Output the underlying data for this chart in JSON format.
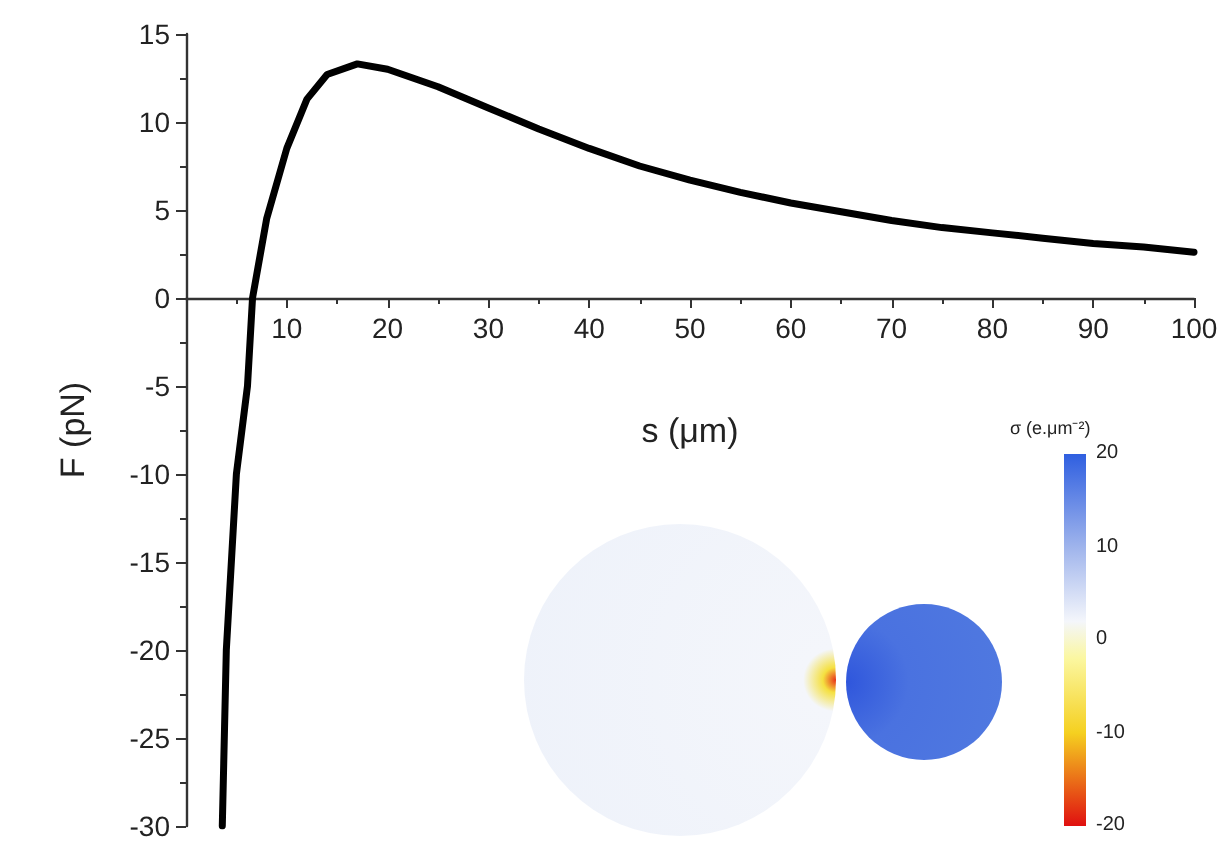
{
  "chart_data": {
    "type": "line",
    "xlabel": "s (μm)",
    "ylabel": "F (pN)",
    "annotations": [
      "σ (e.μm⁻²)",
      "20",
      "10",
      "0",
      "-10",
      "-20"
    ],
    "xlim": [
      0,
      100
    ],
    "xticks": [
      {
        "value": 0,
        "label": null
      },
      10,
      20,
      30,
      40,
      50,
      60,
      70,
      80,
      90,
      100
    ],
    "ylim": [
      -30,
      15
    ],
    "yticks": [
      -30,
      -25,
      -20,
      -15,
      -10,
      -5,
      0,
      5,
      10,
      15
    ],
    "marker": "none",
    "line_style": "solid",
    "series": [
      {
        "color": "#000000",
        "x": [
          3.6,
          4,
          5,
          6.1,
          6.6,
          8,
          10,
          12,
          14,
          17,
          20,
          25,
          30,
          35,
          40,
          45,
          50,
          55,
          60,
          65,
          70,
          75,
          80,
          85,
          90,
          95,
          100
        ],
        "values": [
          -30,
          -20,
          -10,
          -5,
          0,
          4.5,
          8.5,
          11.3,
          12.7,
          13.3,
          13,
          12,
          10.8,
          9.6,
          8.5,
          7.5,
          6.7,
          6,
          5.4,
          4.9,
          4.4,
          4,
          3.7,
          3.4,
          3.1,
          2.9,
          2.6
        ]
      }
    ]
  }
}
